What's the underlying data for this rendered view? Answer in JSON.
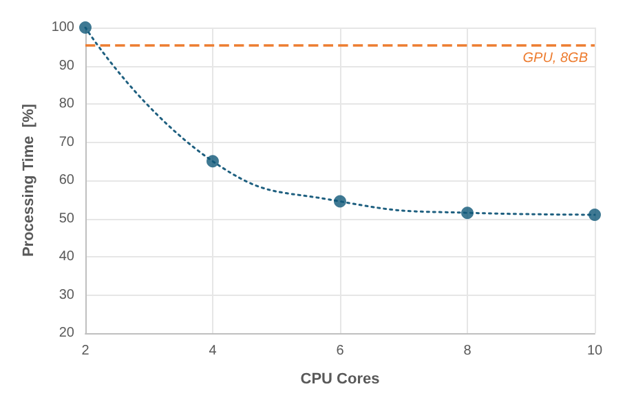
{
  "chart_data": {
    "type": "scatter",
    "xlabel": "CPU Cores",
    "ylabel": "Processing Time  [%]",
    "x": [
      2,
      4,
      6,
      8,
      10
    ],
    "series": [
      {
        "type": "line",
        "color": "#1f6080",
        "line_style": "dotted",
        "marker": "none",
        "values": [
          100,
          65,
          54.5,
          51.5,
          51
        ]
      },
      {
        "color": "#0f5878",
        "marker": "circle",
        "values": [
          100,
          65,
          54.5,
          51.5,
          51
        ]
      }
    ],
    "xlim": [
      2,
      10
    ],
    "xticks": [
      2,
      4,
      6,
      8,
      10
    ],
    "ylim": [
      20,
      100
    ],
    "yticks": [
      20,
      30,
      40,
      50,
      60,
      70,
      80,
      90,
      100
    ],
    "grid": true,
    "ref_lines": [
      {
        "axis": "y",
        "value": 95.5,
        "label": "GPU, 8GB",
        "color": "#ed7d31",
        "line_style": "dashed"
      }
    ]
  }
}
